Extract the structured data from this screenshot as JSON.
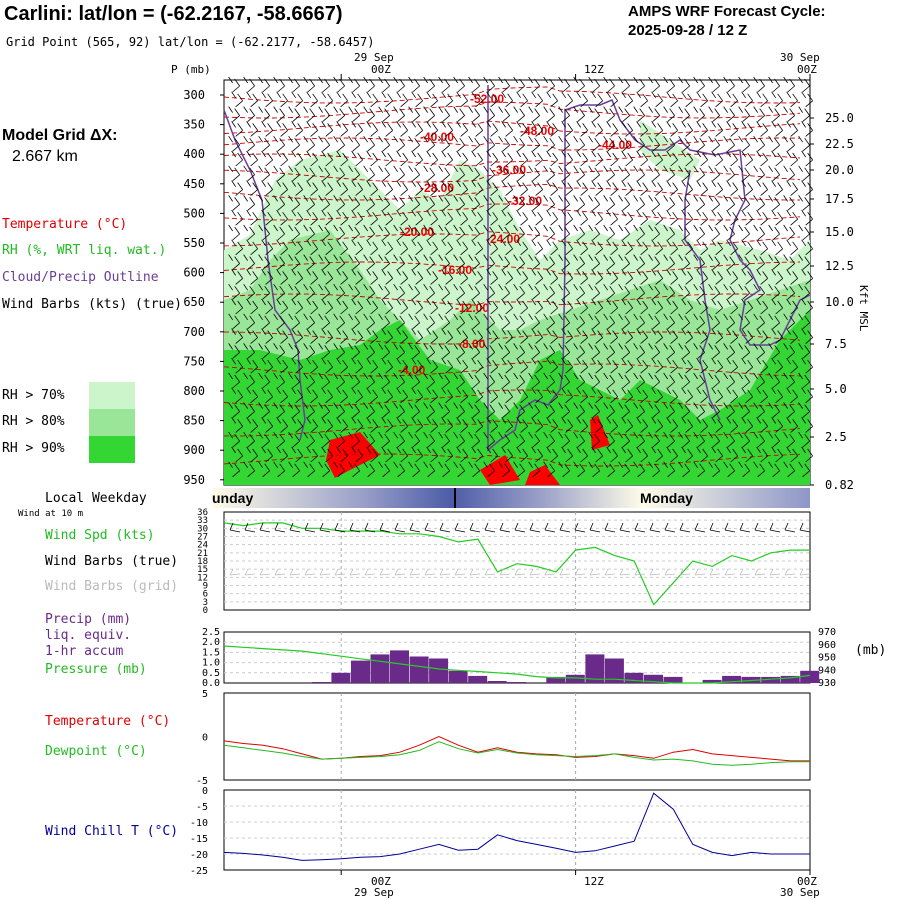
{
  "header": {
    "title": "Carlini:  lat/lon = (-62.2167, -58.6667)",
    "grid_point": "Grid Point (565, 92) lat/lon = (-62.2177, -58.6457)",
    "cycle_line1": "AMPS WRF Forecast Cycle:",
    "cycle_line2": "2025-09-28 / 12  Z"
  },
  "time_axis": {
    "top_date_left": "29 Sep",
    "top_date_right": "30 Sep",
    "bottom_date_left": "29 Sep",
    "bottom_date_right": "30 Sep",
    "ticks": [
      "00Z",
      "12Z",
      "00Z"
    ]
  },
  "legend": {
    "model_grid_label": "Model Grid ΔX:",
    "model_grid_value": "2.667 km",
    "temperature": "Temperature (°C)",
    "rh": "RH (%, WRT liq. wat.)",
    "cloud": "Cloud/Precip Outline",
    "wind_barbs": "Wind Barbs (kts) (true)",
    "rh70": "RH > 70%",
    "rh80": "RH > 80%",
    "rh90": "RH > 90%",
    "local_weekday": "Local Weekday",
    "wind_at_10m": "Wind at 10 m",
    "wind_spd": "Wind Spd (kts)",
    "wind_barbs_true": "Wind Barbs (true)",
    "wind_barbs_grid": "Wind Barbs (grid)",
    "precip_1": "Precip (mm)",
    "precip_2": "liq. equiv.",
    "precip_3": "1-hr accum",
    "pressure": "Pressure (mb)",
    "pressure_unit": "(mb)",
    "temperature2": "Temperature (°C)",
    "dewpoint": "Dewpoint (°C)",
    "wind_chill": "Wind Chill T (°C)",
    "kft_msl": "Kft MSL",
    "p_mb": "P (mb)"
  },
  "weekday_bar": {
    "left": "Sunday",
    "right": "Monday"
  },
  "colors": {
    "temp": "#e00000",
    "rh70": "#ccf5cc",
    "rh80": "#99e699",
    "rh90": "#33d633",
    "cloud": "#6a3d9a",
    "wind_line": "#22cc22",
    "precip": "#6a2a8a",
    "windchill": "#000099",
    "dewpoint": "#22bb22"
  },
  "chart_data": [
    {
      "type": "heatmap",
      "title": "Pressure-time cross section",
      "ylabel": "P (mb)",
      "y_ticks": [
        300,
        350,
        400,
        450,
        500,
        550,
        600,
        650,
        700,
        750,
        800,
        850,
        900,
        950
      ],
      "y_right_label": "Kft MSL",
      "y_right_ticks": [
        "25.0",
        "22.5",
        "20.0",
        "17.5",
        "15.0",
        "12.5",
        "10.0",
        "7.5",
        "5.0",
        "2.5",
        "0.82"
      ],
      "temperature_contours": [
        "-52.00",
        "-48.00",
        "-44.00",
        "-40.00",
        "-36.00",
        "-32.00",
        "-28.00",
        "-24.00",
        "-20.00",
        "-16.00",
        "-12.00",
        "-8.00",
        "-4.00"
      ]
    },
    {
      "type": "line",
      "title": "Wind Spd (kts)",
      "y_ticks": [
        0,
        3,
        6,
        9,
        12,
        15,
        18,
        21,
        24,
        27,
        30,
        33,
        36
      ],
      "ylim": [
        0,
        36
      ],
      "x_hours": [
        -6,
        -5,
        -4,
        -3,
        -2,
        -1,
        0,
        1,
        2,
        3,
        4,
        5,
        6,
        7,
        8,
        9,
        10,
        11,
        12,
        13,
        14,
        15,
        16,
        17,
        18,
        19,
        20,
        21,
        22,
        23,
        24
      ],
      "values": [
        32,
        31,
        32,
        32,
        30,
        30,
        29,
        29,
        29,
        28,
        28,
        27,
        25,
        26,
        14,
        17,
        16,
        14,
        22,
        23,
        20,
        18,
        2,
        10,
        18,
        16,
        20,
        18,
        21,
        22,
        22
      ]
    },
    {
      "type": "bar",
      "title": "Precip (mm) / Pressure (mb)",
      "y_ticks": [
        0.0,
        0.5,
        1.0,
        1.5,
        2.0,
        2.5
      ],
      "ylim": [
        0,
        2.5
      ],
      "y2_ticks": [
        930,
        940,
        950,
        960,
        970
      ],
      "y2lim": [
        930,
        970
      ],
      "x_hours": [
        -6,
        -5,
        -4,
        -3,
        -2,
        -1,
        0,
        1,
        2,
        3,
        4,
        5,
        6,
        7,
        8,
        9,
        10,
        11,
        12,
        13,
        14,
        15,
        16,
        17,
        18,
        19,
        20,
        21,
        22,
        23,
        24
      ],
      "precip": [
        0,
        0,
        0,
        0,
        0,
        0.05,
        0.5,
        1.1,
        1.4,
        1.6,
        1.3,
        1.2,
        0.6,
        0.35,
        0.1,
        0.05,
        0,
        0.3,
        0.4,
        1.4,
        1.2,
        0.5,
        0.4,
        0.3,
        0,
        0.15,
        0.35,
        0.3,
        0.3,
        0.35,
        0.6
      ],
      "pressure": [
        959,
        958,
        957,
        956,
        955,
        953,
        951,
        949,
        947,
        945,
        943,
        941,
        940,
        939,
        938,
        937,
        935,
        934,
        934,
        933,
        933,
        932,
        931,
        930,
        930,
        930,
        931,
        932,
        933,
        934,
        936
      ]
    },
    {
      "type": "line",
      "title": "Temperature / Dewpoint (°C)",
      "y_ticks": [
        5,
        0,
        -5
      ],
      "ylim": [
        -5,
        5
      ],
      "x_hours": [
        -6,
        -5,
        -4,
        -3,
        -2,
        -1,
        0,
        1,
        2,
        3,
        4,
        5,
        6,
        7,
        8,
        9,
        10,
        11,
        12,
        13,
        14,
        15,
        16,
        17,
        18,
        19,
        20,
        21,
        22,
        23,
        24
      ],
      "series": [
        {
          "name": "Temperature",
          "values": [
            -0.5,
            -0.8,
            -1.0,
            -1.4,
            -2.0,
            -2.6,
            -2.5,
            -2.3,
            -2.2,
            -1.8,
            -1.0,
            0.0,
            -1.0,
            -1.8,
            -1.3,
            -1.8,
            -2.0,
            -2.1,
            -2.4,
            -2.3,
            -2.0,
            -2.2,
            -2.5,
            -1.8,
            -1.5,
            -2.0,
            -2.2,
            -2.4,
            -2.6,
            -2.8,
            -2.8
          ]
        },
        {
          "name": "Dewpoint",
          "values": [
            -1.0,
            -1.3,
            -1.6,
            -1.9,
            -2.3,
            -2.6,
            -2.5,
            -2.4,
            -2.3,
            -2.1,
            -1.6,
            -0.6,
            -1.4,
            -1.9,
            -1.5,
            -1.9,
            -2.1,
            -2.2,
            -2.3,
            -2.2,
            -2.0,
            -2.4,
            -2.7,
            -2.6,
            -2.8,
            -3.2,
            -3.3,
            -3.2,
            -3.0,
            -2.9,
            -2.9
          ]
        }
      ]
    },
    {
      "type": "line",
      "title": "Wind Chill T (°C)",
      "y_ticks": [
        0,
        -5,
        -10,
        -15,
        -20,
        -25
      ],
      "ylim": [
        -25,
        0
      ],
      "x_hours": [
        -6,
        -5,
        -4,
        -3,
        -2,
        -1,
        0,
        1,
        2,
        3,
        4,
        5,
        6,
        7,
        8,
        9,
        10,
        11,
        12,
        13,
        14,
        15,
        16,
        17,
        18,
        19,
        20,
        21,
        22,
        23,
        24
      ],
      "values": [
        -19.5,
        -19.8,
        -20.3,
        -21.0,
        -22.0,
        -21.8,
        -21.5,
        -21.0,
        -20.8,
        -20.0,
        -18.5,
        -17.0,
        -18.8,
        -18.5,
        -14.0,
        -15.8,
        -17.0,
        -18.2,
        -19.5,
        -19.0,
        -17.5,
        -16.0,
        -1.0,
        -6.0,
        -17.0,
        -19.5,
        -20.5,
        -19.5,
        -20.0,
        -20.0,
        -20.0
      ]
    }
  ]
}
